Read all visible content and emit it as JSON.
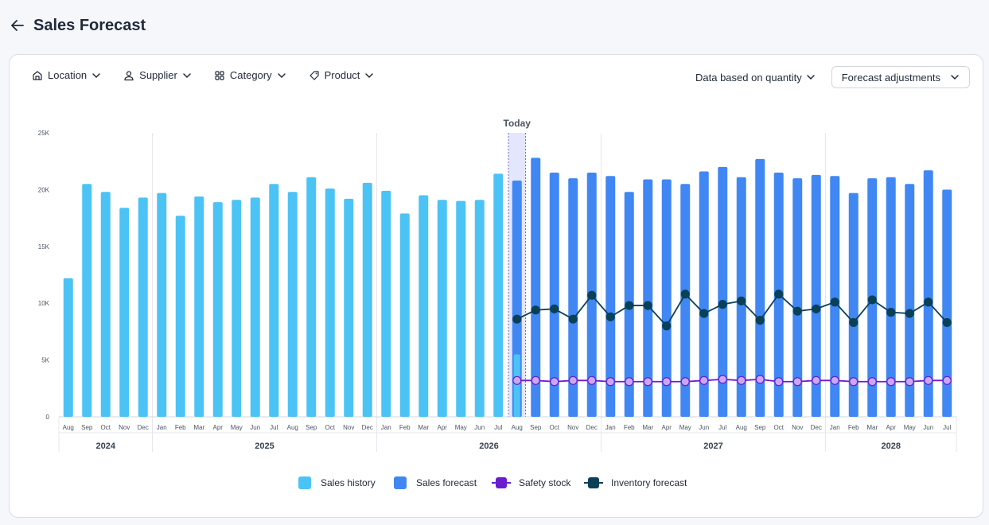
{
  "header": {
    "title": "Sales Forecast"
  },
  "filters": {
    "location": "Location",
    "supplier": "Supplier",
    "category": "Category",
    "product": "Product"
  },
  "controls": {
    "basis": "Data based on quantity",
    "adjustments": "Forecast adjustments"
  },
  "colors": {
    "history": "#4cc3f5",
    "forecast": "#4087f4",
    "safety": "#6b1bd0",
    "safety_fill": "#c8a8f5",
    "inventory": "#0a4158",
    "today_band": "#e3e6fc"
  },
  "chart_data": {
    "type": "bar",
    "today_label": "Today",
    "today_index": 24,
    "ylim": [
      0,
      25000
    ],
    "y_ticks": [
      0,
      5000,
      10000,
      15000,
      20000,
      25000
    ],
    "y_tick_labels": [
      "0",
      "5K",
      "10K",
      "15K",
      "20K",
      "25K"
    ],
    "categories": [
      "Aug",
      "Sep",
      "Oct",
      "Nov",
      "Dec",
      "Jan",
      "Feb",
      "Mar",
      "Apr",
      "May",
      "Jun",
      "Jul",
      "Aug",
      "Sep",
      "Oct",
      "Nov",
      "Dec",
      "Jan",
      "Feb",
      "Mar",
      "Apr",
      "May",
      "Jun",
      "Jul",
      "Aug",
      "Sep",
      "Oct",
      "Nov",
      "Dec",
      "Jan",
      "Feb",
      "Mar",
      "Apr",
      "May",
      "Jun",
      "Jul",
      "Aug",
      "Sep",
      "Oct",
      "Nov",
      "Dec",
      "Jan",
      "Feb",
      "Mar",
      "Apr",
      "May",
      "Jun",
      "Jul"
    ],
    "years": [
      {
        "label": "2024",
        "start": 0,
        "end": 4
      },
      {
        "label": "2025",
        "start": 5,
        "end": 16
      },
      {
        "label": "2026",
        "start": 17,
        "end": 28
      },
      {
        "label": "2027",
        "start": 29,
        "end": 40
      },
      {
        "label": "2028",
        "start": 41,
        "end": 47
      }
    ],
    "series": [
      {
        "name": "Sales history",
        "values": [
          12200,
          20500,
          19800,
          18400,
          19300,
          19700,
          17700,
          19400,
          18900,
          19100,
          19300,
          20500,
          19800,
          21100,
          20100,
          19200,
          20600,
          19900,
          17900,
          19500,
          19100,
          19000,
          19100,
          21400,
          5500,
          null,
          null,
          null,
          null,
          null,
          null,
          null,
          null,
          null,
          null,
          null,
          null,
          null,
          null,
          null,
          null,
          null,
          null,
          null,
          null,
          null,
          null,
          null
        ]
      },
      {
        "name": "Sales forecast",
        "values": [
          null,
          null,
          null,
          null,
          null,
          null,
          null,
          null,
          null,
          null,
          null,
          null,
          null,
          null,
          null,
          null,
          null,
          null,
          null,
          null,
          null,
          null,
          null,
          null,
          20800,
          22800,
          21500,
          21000,
          21500,
          21200,
          19800,
          20900,
          20900,
          20500,
          21600,
          22000,
          21100,
          22700,
          21500,
          21000,
          21300,
          21200,
          19700,
          21000,
          21100,
          20500,
          21700,
          20000
        ]
      },
      {
        "name": "Safety stock",
        "values": [
          null,
          null,
          null,
          null,
          null,
          null,
          null,
          null,
          null,
          null,
          null,
          null,
          null,
          null,
          null,
          null,
          null,
          null,
          null,
          null,
          null,
          null,
          null,
          null,
          3200,
          3200,
          3100,
          3200,
          3200,
          3100,
          3100,
          3100,
          3100,
          3100,
          3200,
          3300,
          3200,
          3300,
          3100,
          3100,
          3200,
          3200,
          3100,
          3100,
          3100,
          3100,
          3200,
          3200
        ]
      },
      {
        "name": "Inventory forecast",
        "values": [
          null,
          null,
          null,
          null,
          null,
          null,
          null,
          null,
          null,
          null,
          null,
          null,
          null,
          null,
          null,
          null,
          null,
          null,
          null,
          null,
          null,
          null,
          null,
          null,
          8600,
          9400,
          9500,
          8600,
          10700,
          8800,
          9800,
          9800,
          8000,
          10800,
          9100,
          9900,
          10200,
          8500,
          10800,
          9300,
          9500,
          10100,
          8300,
          10300,
          9200,
          9100,
          10100,
          8300
        ]
      }
    ],
    "legend": [
      "Sales history",
      "Sales forecast",
      "Safety stock",
      "Inventory forecast"
    ],
    "legend_position": "bottom-center"
  }
}
